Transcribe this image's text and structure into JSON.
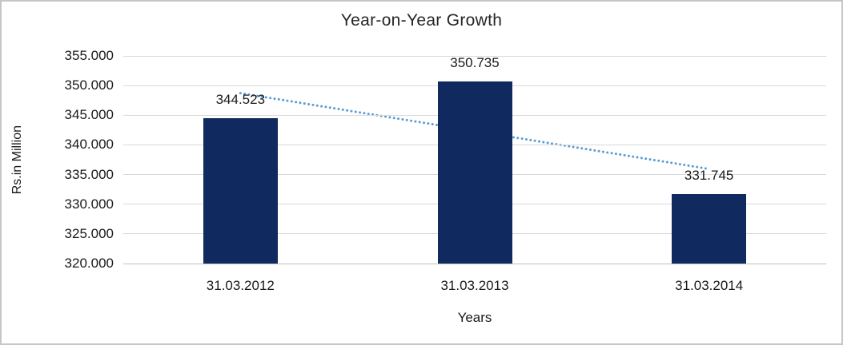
{
  "chart_data": {
    "type": "bar",
    "title": "Year-on-Year Growth",
    "xlabel": "Years",
    "ylabel": "Rs.in Million",
    "categories": [
      "31.03.2012",
      "31.03.2013",
      "31.03.2014"
    ],
    "values": [
      344.523,
      350.735,
      331.745
    ],
    "value_labels": [
      "344.523",
      "350.735",
      "331.745"
    ],
    "ylim": [
      320,
      355
    ],
    "ytick_step": 5,
    "ytick_labels": [
      "320.000",
      "325.000",
      "330.000",
      "335.000",
      "340.000",
      "345.000",
      "350.000",
      "355.000"
    ],
    "grid": true,
    "legend": false,
    "trendline": {
      "type": "linear",
      "style": "dotted",
      "start_value": 348.72,
      "end_value": 335.95
    },
    "colors": {
      "bar": "#10295E",
      "trendline": "#5B9BD5",
      "gridline": "#D9D9D9",
      "axis_line": "#BFBFBF",
      "text": "#1A1A1A",
      "title_text": "#262626",
      "chart_border": "#C6C6C6",
      "background": "#FFFFFF"
    }
  }
}
